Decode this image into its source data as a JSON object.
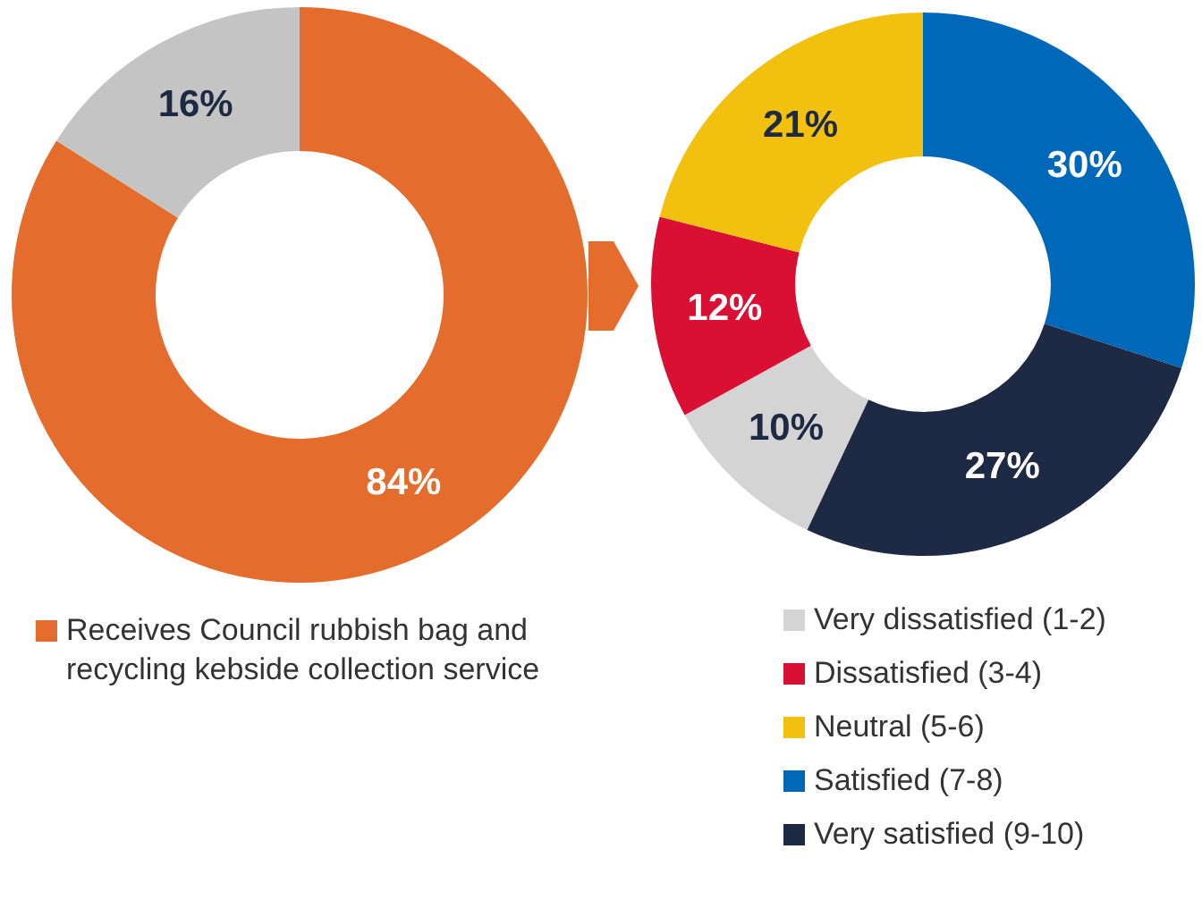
{
  "chart_data": [
    {
      "type": "donut",
      "categories": [
        "Receives Council rubbish bag and recycling kebside collection service",
        null
      ],
      "values": [
        84,
        16
      ],
      "colors": [
        "#e46c2c",
        "#c4c4c4"
      ],
      "value_labels": [
        "84%",
        "16%"
      ],
      "legend": "bottom"
    },
    {
      "type": "donut",
      "categories": [
        "Very dissatisfied (1-2)",
        "Dissatisfied (3-4)",
        "Neutral (5-6)",
        "Satisfied (7-8)",
        "Very satisfied (9-10)"
      ],
      "values": [
        10,
        12,
        21,
        30,
        27
      ],
      "colors": [
        "#d4d4d4",
        "#d90f33",
        "#f2c00e",
        "#0068b8",
        "#1e2a44"
      ],
      "value_labels": [
        "10%",
        "12%",
        "21%",
        "30%",
        "27%"
      ],
      "legend": "bottom"
    }
  ]
}
